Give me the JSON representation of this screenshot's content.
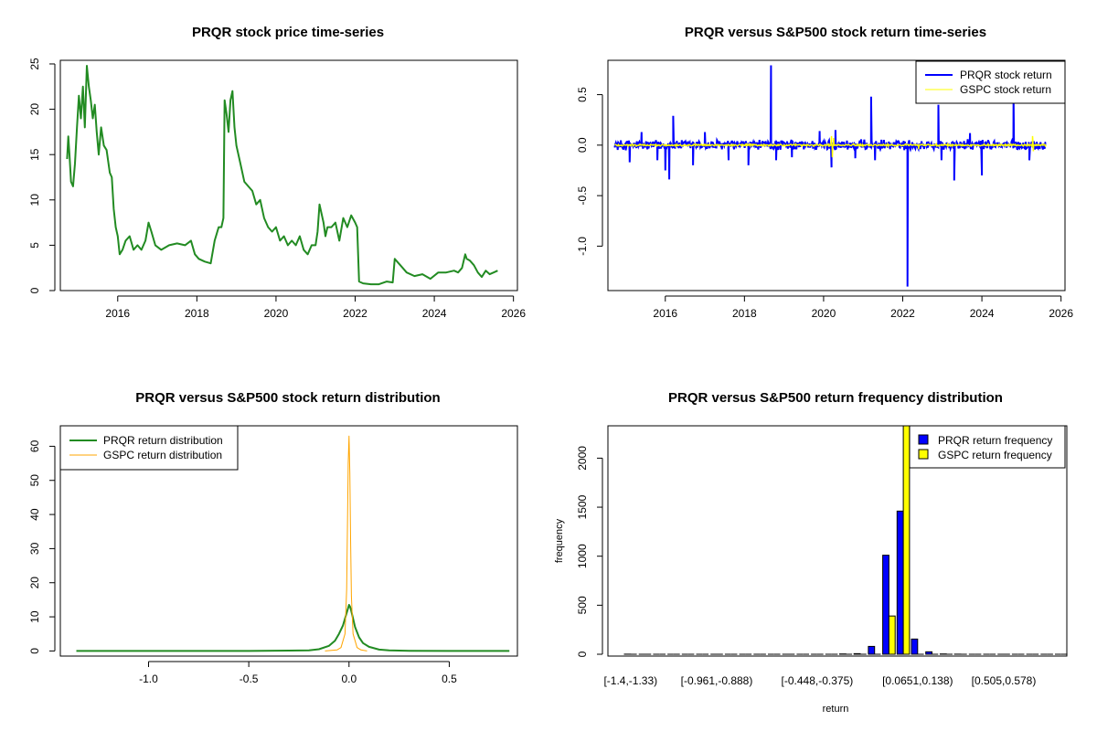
{
  "chart_data": [
    {
      "id": "price",
      "type": "line",
      "title": "PRQR stock price time-series",
      "xlabel": "",
      "ylabel": "",
      "xlim": [
        2014.55,
        2026.1
      ],
      "ylim": [
        0,
        25.4
      ],
      "x_ticks": [
        2016,
        2018,
        2020,
        2022,
        2024,
        2026
      ],
      "y_ticks": [
        0,
        5,
        10,
        15,
        20,
        25
      ],
      "color": "#228B22",
      "series": [
        {
          "x": [
            2014.72,
            2014.75,
            2014.78,
            2014.82,
            2014.87,
            2014.92,
            2014.97,
            2015.02,
            2015.07,
            2015.12,
            2015.17,
            2015.22,
            2015.27,
            2015.32,
            2015.37,
            2015.42,
            2015.47,
            2015.52,
            2015.58,
            2015.65,
            2015.72,
            2015.8,
            2015.85,
            2015.9,
            2015.95,
            2016.0,
            2016.05,
            2016.12,
            2016.2,
            2016.3,
            2016.4,
            2016.5,
            2016.6,
            2016.7,
            2016.78,
            2016.85,
            2016.95,
            2017.1,
            2017.3,
            2017.5,
            2017.7,
            2017.85,
            2017.95,
            2018.05,
            2018.2,
            2018.35,
            2018.45,
            2018.55,
            2018.62,
            2018.67,
            2018.7,
            2018.75,
            2018.8,
            2018.85,
            2018.9,
            2018.95,
            2019.0,
            2019.1,
            2019.2,
            2019.3,
            2019.4,
            2019.5,
            2019.6,
            2019.7,
            2019.8,
            2019.9,
            2020.0,
            2020.1,
            2020.2,
            2020.3,
            2020.4,
            2020.5,
            2020.6,
            2020.7,
            2020.8,
            2020.9,
            2021.0,
            2021.05,
            2021.1,
            2021.2,
            2021.25,
            2021.3,
            2021.4,
            2021.5,
            2021.6,
            2021.7,
            2021.8,
            2021.9,
            2022.0,
            2022.05,
            2022.1,
            2022.2,
            2022.4,
            2022.6,
            2022.8,
            2022.95,
            2023.0,
            2023.1,
            2023.2,
            2023.3,
            2023.5,
            2023.7,
            2023.9,
            2024.1,
            2024.3,
            2024.5,
            2024.6,
            2024.7,
            2024.78,
            2024.82,
            2024.9,
            2025.0,
            2025.1,
            2025.2,
            2025.3,
            2025.4,
            2025.5,
            2025.6
          ],
          "y": [
            14.5,
            17.0,
            15.0,
            12.0,
            11.5,
            14.0,
            18.0,
            21.5,
            19.0,
            22.5,
            18.0,
            24.8,
            22.5,
            21.0,
            19.0,
            20.5,
            17.5,
            15.0,
            18.0,
            16.0,
            15.5,
            13.0,
            12.5,
            9.0,
            7.0,
            6.0,
            4.0,
            4.5,
            5.5,
            6.0,
            4.5,
            5.0,
            4.5,
            5.5,
            7.5,
            6.5,
            5.0,
            4.5,
            5.0,
            5.2,
            5.0,
            5.5,
            4.0,
            3.5,
            3.2,
            3.0,
            5.5,
            7.0,
            7.0,
            8.0,
            21.0,
            19.5,
            17.5,
            21.0,
            22.0,
            18.0,
            16.0,
            14.0,
            12.0,
            11.5,
            11.0,
            9.5,
            10.0,
            8.0,
            7.0,
            6.5,
            7.0,
            5.5,
            6.0,
            5.0,
            5.5,
            5.0,
            6.0,
            4.5,
            4.0,
            5.0,
            5.0,
            6.5,
            9.5,
            7.5,
            6.0,
            7.0,
            7.0,
            7.5,
            5.5,
            8.0,
            7.0,
            8.3,
            7.5,
            7.0,
            1.0,
            0.8,
            0.7,
            0.7,
            1.0,
            0.9,
            3.5,
            3.0,
            2.5,
            2.0,
            1.6,
            1.8,
            1.3,
            2.0,
            2.0,
            2.2,
            2.0,
            2.5,
            4.0,
            3.5,
            3.3,
            2.8,
            2.0,
            1.5,
            2.2,
            1.8,
            2.0,
            2.2
          ]
        }
      ]
    },
    {
      "id": "returns",
      "type": "line",
      "title": "PRQR versus S&P500 stock return time-series",
      "xlabel": "",
      "ylabel": "",
      "xlim": [
        2014.55,
        2026.1
      ],
      "ylim": [
        -1.44,
        0.84
      ],
      "x_ticks": [
        2016,
        2018,
        2020,
        2022,
        2024,
        2026
      ],
      "y_ticks": [
        -1.0,
        -0.5,
        0.0,
        0.5
      ],
      "legend": {
        "position": "top-right",
        "entries": [
          "PRQR stock return",
          "GSPC stock return"
        ]
      },
      "series": [
        {
          "name": "PRQR stock return",
          "color": "#0000FF",
          "noise_amplitude": 0.06,
          "spikes": [
            {
              "x": 2015.1,
              "y": -0.17
            },
            {
              "x": 2015.4,
              "y": 0.13
            },
            {
              "x": 2015.8,
              "y": -0.15
            },
            {
              "x": 2016.0,
              "y": -0.25
            },
            {
              "x": 2016.1,
              "y": -0.34
            },
            {
              "x": 2016.2,
              "y": 0.29
            },
            {
              "x": 2016.7,
              "y": -0.2
            },
            {
              "x": 2017.0,
              "y": 0.13
            },
            {
              "x": 2017.6,
              "y": -0.15
            },
            {
              "x": 2018.1,
              "y": -0.2
            },
            {
              "x": 2018.67,
              "y": 0.79
            },
            {
              "x": 2018.8,
              "y": -0.15
            },
            {
              "x": 2019.2,
              "y": -0.12
            },
            {
              "x": 2019.9,
              "y": 0.14
            },
            {
              "x": 2020.2,
              "y": -0.22
            },
            {
              "x": 2020.3,
              "y": 0.15
            },
            {
              "x": 2020.8,
              "y": -0.13
            },
            {
              "x": 2021.2,
              "y": 0.48
            },
            {
              "x": 2021.3,
              "y": -0.15
            },
            {
              "x": 2022.12,
              "y": -1.4
            },
            {
              "x": 2022.9,
              "y": 0.4
            },
            {
              "x": 2022.98,
              "y": -0.15
            },
            {
              "x": 2023.3,
              "y": -0.35
            },
            {
              "x": 2023.7,
              "y": 0.12
            },
            {
              "x": 2024.0,
              "y": -0.3
            },
            {
              "x": 2024.8,
              "y": 0.5
            },
            {
              "x": 2025.2,
              "y": -0.15
            }
          ]
        },
        {
          "name": "GSPC stock return",
          "color": "#FFFF00",
          "noise_amplitude": 0.012,
          "spikes": [
            {
              "x": 2020.2,
              "y": 0.09
            },
            {
              "x": 2020.22,
              "y": -0.12
            },
            {
              "x": 2020.25,
              "y": 0.07
            },
            {
              "x": 2022.4,
              "y": -0.04
            },
            {
              "x": 2025.28,
              "y": 0.09
            },
            {
              "x": 2025.3,
              "y": -0.06
            }
          ]
        }
      ]
    },
    {
      "id": "density",
      "type": "line",
      "title": "PRQR versus S&P500 stock return distribution",
      "xlabel": "",
      "ylabel": "",
      "xlim": [
        -1.44,
        0.84
      ],
      "ylim": [
        -1.5,
        66
      ],
      "x_ticks": [
        -1.0,
        -0.5,
        0.0,
        0.5
      ],
      "x_tick_labels": [
        "-1.0",
        "-0.5",
        "0.0",
        "0.5"
      ],
      "y_ticks": [
        0,
        10,
        20,
        30,
        40,
        50,
        60
      ],
      "legend": {
        "position": "top-left",
        "entries": [
          "PRQR return distribution",
          "GSPC return distribution"
        ]
      },
      "series": [
        {
          "name": "PRQR return distribution",
          "color": "#228B22",
          "x": [
            -1.36,
            -1.2,
            -1.0,
            -0.8,
            -0.5,
            -0.3,
            -0.2,
            -0.15,
            -0.1,
            -0.07,
            -0.05,
            -0.03,
            -0.02,
            -0.01,
            0.0,
            0.005,
            0.01,
            0.02,
            0.03,
            0.05,
            0.07,
            0.1,
            0.15,
            0.2,
            0.3,
            0.5,
            0.8
          ],
          "y": [
            0,
            0,
            0,
            0,
            0,
            0.1,
            0.2,
            0.5,
            1.5,
            3.0,
            5.0,
            7.5,
            9.5,
            11.5,
            13.5,
            13.0,
            12.0,
            9.5,
            7.0,
            4.0,
            2.3,
            1.2,
            0.4,
            0.15,
            0.05,
            0,
            0
          ]
        },
        {
          "name": "GSPC return distribution",
          "color": "#FFA500",
          "x": [
            -0.12,
            -0.06,
            -0.04,
            -0.02,
            -0.012,
            -0.008,
            -0.004,
            0.0,
            0.004,
            0.008,
            0.012,
            0.02,
            0.04,
            0.06,
            0.09
          ],
          "y": [
            0,
            0.3,
            1.0,
            5.0,
            18.0,
            35.0,
            55.0,
            63.0,
            52.0,
            33.0,
            16.0,
            5.0,
            1.0,
            0.3,
            0
          ]
        }
      ]
    },
    {
      "id": "histogram",
      "type": "bar",
      "title": "PRQR versus S&P500 return frequency distribution",
      "xlabel": "return",
      "ylabel": "frequency",
      "ylim": [
        0,
        2330
      ],
      "y_ticks": [
        0,
        500,
        1000,
        1500,
        2000
      ],
      "labelled_categories": [
        {
          "index": 0,
          "label": "[-1.4,-1.33)"
        },
        {
          "index": 6,
          "label": "[-0.961,-0.888)"
        },
        {
          "index": 13,
          "label": "[-0.448,-0.375)"
        },
        {
          "index": 20,
          "label": "[0.0651,0.138)"
        },
        {
          "index": 26,
          "label": "[0.505,0.578)"
        }
      ],
      "legend": {
        "position": "top-right",
        "entries": [
          "PRQR return frequency",
          "GSPC return frequency"
        ]
      },
      "series": [
        {
          "name": "PRQR return frequency",
          "color": "#0000FF",
          "values": [
            1,
            0,
            0,
            0,
            0,
            0,
            0,
            0,
            0,
            0,
            0,
            0,
            0,
            0,
            0,
            3,
            6,
            80,
            1010,
            1460,
            155,
            25,
            3,
            1,
            0,
            0,
            0,
            0,
            0,
            0,
            0
          ]
        },
        {
          "name": "GSPC return frequency",
          "color": "#FFFF00",
          "values": [
            0,
            0,
            0,
            0,
            0,
            0,
            0,
            0,
            0,
            0,
            0,
            0,
            0,
            0,
            0,
            0,
            0,
            0,
            390,
            2330,
            0,
            0,
            0,
            0,
            0,
            0,
            0,
            0,
            0,
            0,
            0
          ]
        }
      ]
    }
  ]
}
